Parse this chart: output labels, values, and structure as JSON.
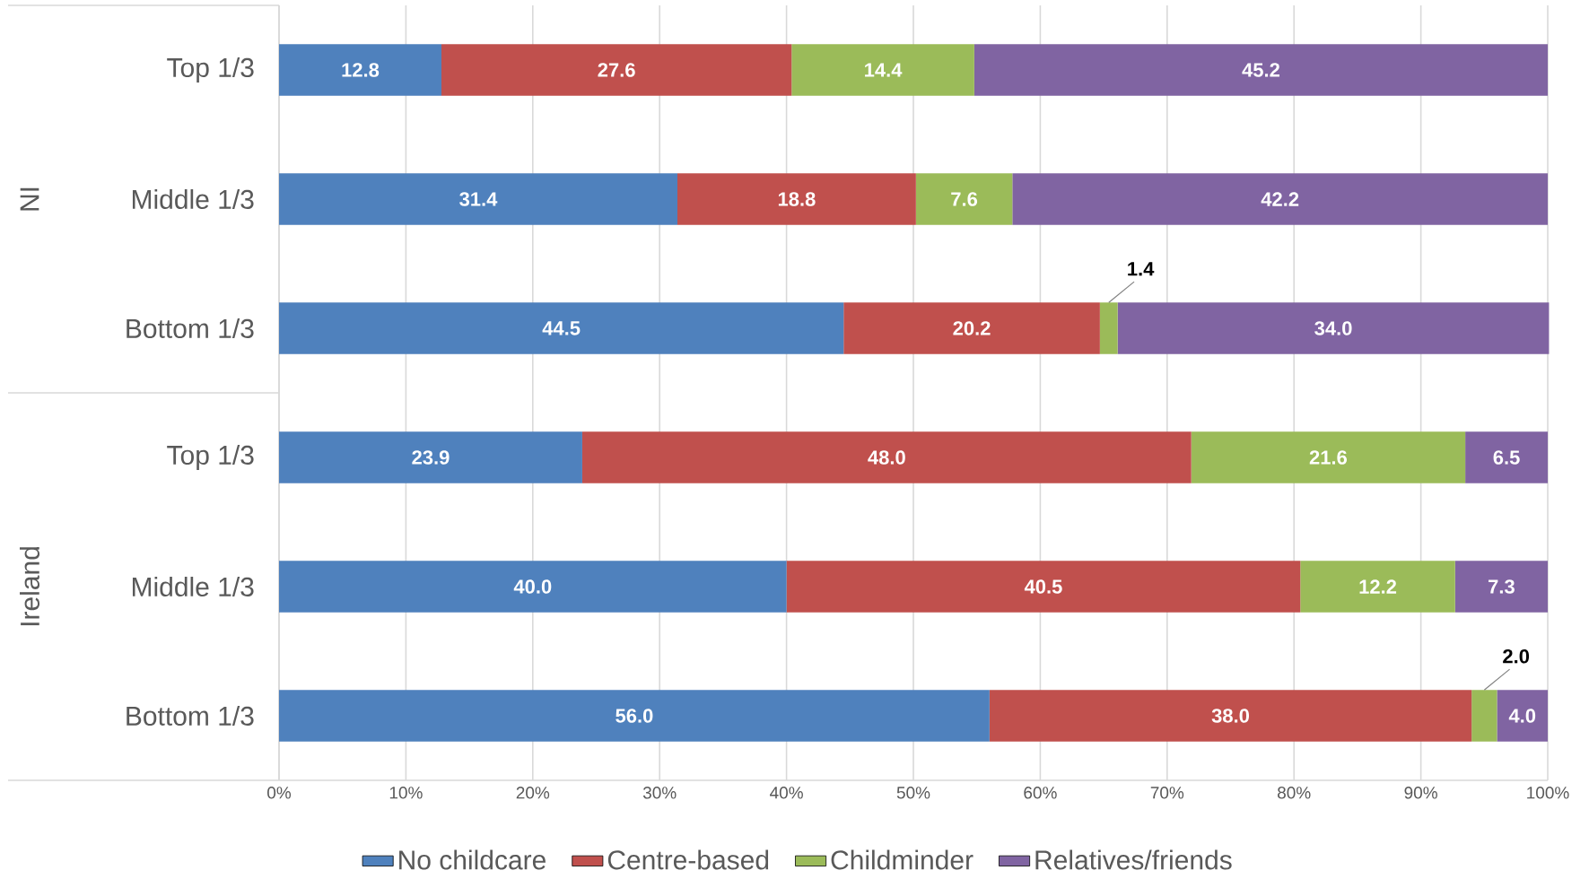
{
  "chart_data": {
    "type": "bar",
    "orientation": "horizontal",
    "stacked": true,
    "categories": [
      "Top 1/3",
      "Middle 1/3",
      "Bottom 1/3",
      "Top 1/3",
      "Middle 1/3",
      "Bottom 1/3"
    ],
    "annotations": [
      "NI",
      "Ireland"
    ],
    "series": [
      {
        "name": "No childcare",
        "color": "#4f81bd",
        "values": [
          12.8,
          31.4,
          44.5,
          23.9,
          40.0,
          56.0
        ],
        "value_labels": [
          "12.8",
          "31.4",
          "44.5",
          "23.9",
          "40.0",
          "56.0"
        ]
      },
      {
        "name": "Centre-based",
        "color": "#c0504d",
        "values": [
          27.6,
          18.8,
          20.2,
          48.0,
          40.5,
          38.0
        ],
        "value_labels": [
          "27.6",
          "18.8",
          "20.2",
          "48.0",
          "40.5",
          "38.0"
        ]
      },
      {
        "name": "Childminder",
        "color": "#9bbb59",
        "values": [
          14.4,
          7.6,
          1.4,
          21.6,
          12.2,
          2.0
        ],
        "value_labels": [
          "14.4",
          "7.6",
          "1.4",
          "21.6",
          "12.2",
          "2.0"
        ]
      },
      {
        "name": "Relatives/friends",
        "color": "#8064a2",
        "values": [
          45.2,
          42.2,
          34.0,
          6.5,
          7.3,
          4.0
        ],
        "value_labels": [
          "45.2",
          "42.2",
          "34.0",
          "6.5",
          "7.3",
          "4.0"
        ]
      }
    ],
    "xlim": [
      0,
      100
    ],
    "xticks": [
      {
        "value": 0,
        "label": "0%"
      },
      {
        "value": 10,
        "label": "10%"
      },
      {
        "value": 20,
        "label": "20%"
      },
      {
        "value": 30,
        "label": "30%"
      },
      {
        "value": 40,
        "label": "40%"
      },
      {
        "value": 50,
        "label": "50%"
      },
      {
        "value": 60,
        "label": "60%"
      },
      {
        "value": 70,
        "label": "70%"
      },
      {
        "value": 80,
        "label": "80%"
      },
      {
        "value": 90,
        "label": "90%"
      },
      {
        "value": 100,
        "label": "100%"
      }
    ],
    "grid": "x",
    "legend": "bottom"
  }
}
